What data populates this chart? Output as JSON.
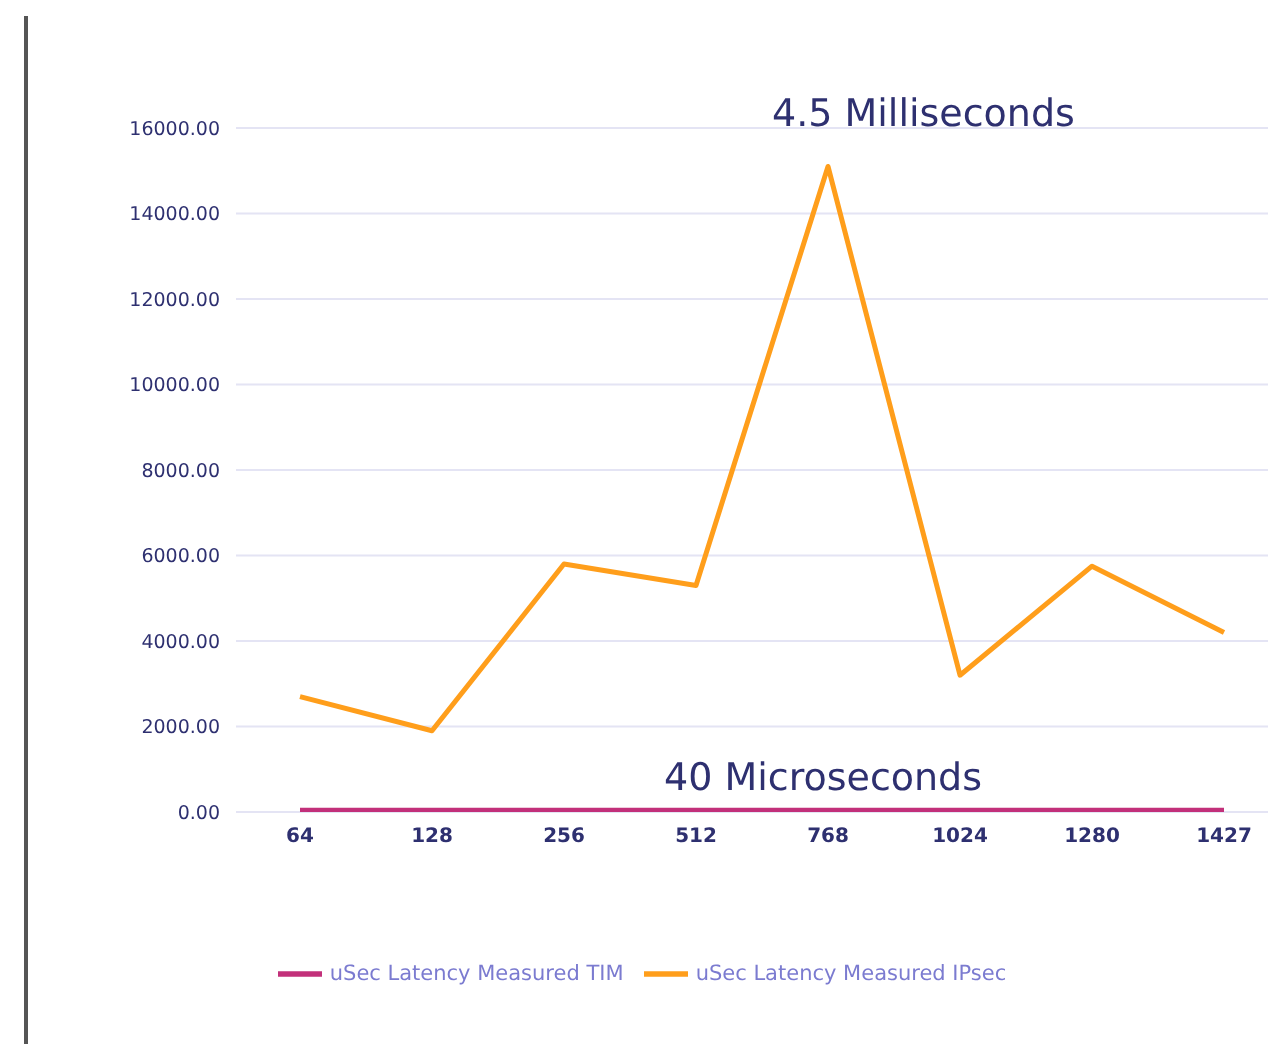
{
  "chart_data": {
    "type": "line",
    "categories": [
      "64",
      "128",
      "256",
      "512",
      "768",
      "1024",
      "1280",
      "1427"
    ],
    "series": [
      {
        "name": "uSec Latency Measured TIM",
        "color": "#c2307a",
        "values": [
          40,
          40,
          40,
          40,
          40,
          40,
          40,
          40
        ]
      },
      {
        "name": "uSec Latency Measured IPsec",
        "color": "#ff9e1b",
        "values": [
          2700,
          1900,
          5800,
          5300,
          15100,
          3200,
          5750,
          4200
        ]
      }
    ],
    "ylim": [
      0,
      16000
    ],
    "yticks": [
      {
        "value": 0,
        "label": "0.00"
      },
      {
        "value": 2000,
        "label": "2000.00"
      },
      {
        "value": 4000,
        "label": "4000.00"
      },
      {
        "value": 6000,
        "label": "6000.00"
      },
      {
        "value": 8000,
        "label": "8000.00"
      },
      {
        "value": 10000,
        "label": "10000.00"
      },
      {
        "value": 12000,
        "label": "12000.00"
      },
      {
        "value": 14000,
        "label": "14000.00"
      },
      {
        "value": 16000,
        "label": "16000.00"
      }
    ],
    "annotations": [
      "4.5 Milliseconds",
      "40 Microseconds"
    ],
    "grid": "y",
    "legend": "bottom",
    "marker": "none",
    "line_style": "solid"
  }
}
